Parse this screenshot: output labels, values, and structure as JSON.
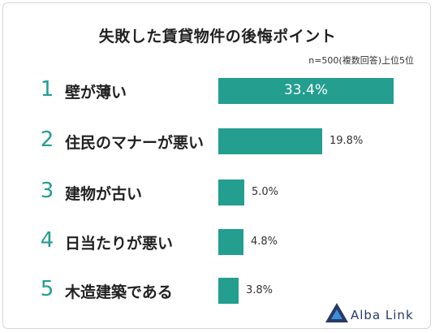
{
  "chart_data": {
    "type": "bar",
    "orientation": "horizontal",
    "title": "失敗した賃貸物件の後悔ポイント",
    "note": "n=500(複数回答)上位5位",
    "ranks": [
      "1",
      "2",
      "3",
      "4",
      "5"
    ],
    "categories": [
      "壁が薄い",
      "住民のマナーが悪い",
      "建物が古い",
      "日当たりが悪い",
      "木造建築である"
    ],
    "values": [
      33.4,
      19.8,
      5.0,
      4.8,
      3.8
    ],
    "value_labels": [
      "33.4%",
      "19.8%",
      "5.0%",
      "4.8%",
      "3.8%"
    ],
    "xlim": [
      0,
      33.4
    ],
    "bar_color": "#239e8f",
    "grid": false,
    "legend": "none"
  },
  "brand": {
    "name": "Alba Link",
    "color": "#2a3a66",
    "accent": "#3a8fd8"
  }
}
